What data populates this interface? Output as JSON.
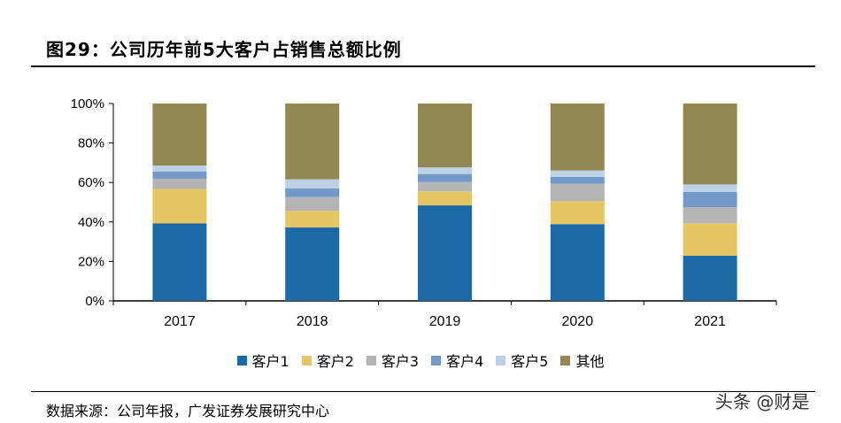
{
  "title": "图29：公司历年前5大客户占销售总额比例",
  "source": "数据来源：公司年报，广发证券发展研究中心",
  "watermark": "头条 @财是",
  "chart_data": {
    "type": "bar",
    "stacked": true,
    "categories": [
      "2017",
      "2018",
      "2019",
      "2020",
      "2021"
    ],
    "series": [
      {
        "name": "客户1",
        "color": "#1b6aa5",
        "values": [
          39.3,
          37.2,
          48.4,
          38.9,
          22.9
        ]
      },
      {
        "name": "客户2",
        "color": "#e5c662",
        "values": [
          17.4,
          8.4,
          7.1,
          11.6,
          16.4
        ]
      },
      {
        "name": "客户3",
        "color": "#b4b4b4",
        "values": [
          5.2,
          7.0,
          4.7,
          8.8,
          8.2
        ]
      },
      {
        "name": "客户4",
        "color": "#7399c9",
        "values": [
          3.7,
          4.4,
          4.1,
          3.5,
          7.7
        ]
      },
      {
        "name": "客户5",
        "color": "#bcd0e8",
        "values": [
          3.0,
          4.6,
          3.4,
          3.3,
          3.8
        ]
      },
      {
        "name": "其他",
        "color": "#928851",
        "values": [
          31.4,
          38.4,
          32.3,
          33.9,
          41.0
        ]
      }
    ],
    "ylim": [
      0,
      100
    ],
    "yticks": [
      "0%",
      "20%",
      "40%",
      "60%",
      "80%",
      "100%"
    ],
    "grid": false,
    "legend": "bottom"
  }
}
